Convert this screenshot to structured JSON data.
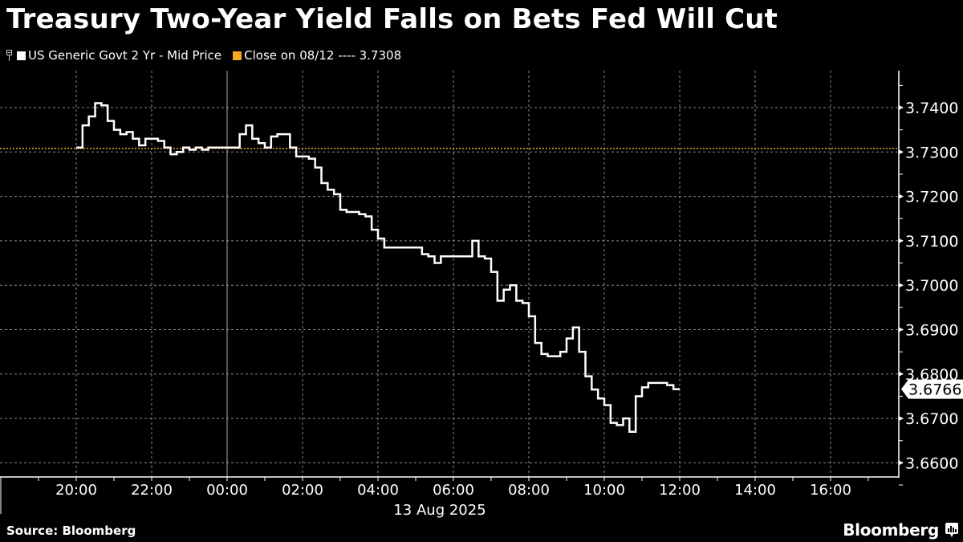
{
  "header": {
    "title": "Treasury Two-Year Yield Falls on Bets Fed Will Cut"
  },
  "legend": {
    "series_label": "US Generic Govt 2 Yr - Mid Price",
    "series_color": "#ffffff",
    "close_label": "Close on 08/12 ---- 3.7308",
    "close_color": "#f5a623"
  },
  "footer": {
    "source": "Source: Bloomberg",
    "brand": "Bloomberg",
    "brand_icon": "chart-bars-icon"
  },
  "chart_data": {
    "type": "line",
    "title": "Treasury Two-Year Yield Falls on Bets Fed Will Cut",
    "xlabel": "13 Aug 2025",
    "ylabel": "",
    "ylim": [
      3.656,
      3.7475
    ],
    "y_ticks": [
      "3.6600",
      "3.6700",
      "3.6800",
      "3.6900",
      "3.7000",
      "3.7100",
      "3.7200",
      "3.7300",
      "3.7400"
    ],
    "x_ticks": [
      "20:00",
      "22:00",
      "00:00",
      "02:00",
      "04:00",
      "06:00",
      "08:00",
      "10:00",
      "12:00",
      "14:00",
      "16:00"
    ],
    "date_label": "13 Aug 2025",
    "grid": true,
    "legend_position": "top-left",
    "last_value": "3.6766",
    "reference_line": {
      "name": "Close on 08/12",
      "value": 3.7308,
      "color": "#f5a623"
    },
    "series": [
      {
        "name": "US Generic Govt 2 Yr - Mid Price",
        "color": "#ffffff",
        "x": [
          "20:00",
          "20:10",
          "20:20",
          "20:30",
          "20:40",
          "20:50",
          "21:00",
          "21:10",
          "21:20",
          "21:30",
          "21:40",
          "21:50",
          "22:00",
          "22:10",
          "22:20",
          "22:30",
          "22:40",
          "22:50",
          "23:00",
          "23:10",
          "23:20",
          "23:30",
          "23:40",
          "23:50",
          "00:00",
          "00:10",
          "00:20",
          "00:30",
          "00:40",
          "00:50",
          "01:00",
          "01:10",
          "01:20",
          "01:30",
          "01:40",
          "01:50",
          "02:00",
          "02:10",
          "02:20",
          "02:30",
          "02:40",
          "02:50",
          "03:00",
          "03:10",
          "03:20",
          "03:30",
          "03:40",
          "03:50",
          "04:00",
          "04:10",
          "04:20",
          "04:30",
          "04:40",
          "04:50",
          "05:00",
          "05:10",
          "05:20",
          "05:30",
          "05:40",
          "05:50",
          "06:00",
          "06:10",
          "06:20",
          "06:30",
          "06:40",
          "06:50",
          "07:00",
          "07:10",
          "07:20",
          "07:30",
          "07:40",
          "07:50",
          "08:00",
          "08:10",
          "08:20",
          "08:30",
          "08:40",
          "08:50",
          "09:00",
          "09:10",
          "09:20",
          "09:30",
          "09:40",
          "09:50",
          "10:00",
          "10:10",
          "10:20",
          "10:30",
          "10:40",
          "10:50",
          "11:00",
          "11:10",
          "11:20",
          "11:30",
          "11:40",
          "11:50",
          "12:00"
        ],
        "values": [
          3.731,
          3.736,
          3.738,
          3.741,
          3.7405,
          3.737,
          3.735,
          3.734,
          3.7345,
          3.733,
          3.7315,
          3.733,
          3.733,
          3.7325,
          3.731,
          3.7295,
          3.73,
          3.731,
          3.7305,
          3.731,
          3.7305,
          3.731,
          3.731,
          3.731,
          3.731,
          3.731,
          3.734,
          3.736,
          3.733,
          3.732,
          3.731,
          3.7335,
          3.734,
          3.734,
          3.731,
          3.729,
          3.729,
          3.7285,
          3.7265,
          3.723,
          3.7215,
          3.7205,
          3.717,
          3.7165,
          3.7165,
          3.716,
          3.7155,
          3.7125,
          3.7105,
          3.7085,
          3.7085,
          3.7085,
          3.7085,
          3.7085,
          3.7085,
          3.707,
          3.7065,
          3.705,
          3.7065,
          3.7065,
          3.7065,
          3.7065,
          3.7065,
          3.71,
          3.7065,
          3.706,
          3.703,
          3.6965,
          3.699,
          3.7,
          3.6965,
          3.696,
          3.693,
          3.687,
          3.6845,
          3.684,
          3.684,
          3.685,
          3.688,
          3.6905,
          3.685,
          3.6795,
          3.6765,
          3.6745,
          3.673,
          3.669,
          3.6685,
          3.67,
          3.667,
          3.675,
          3.677,
          3.678,
          3.678,
          3.678,
          3.6775,
          3.6766,
          3.6766
        ]
      }
    ]
  }
}
